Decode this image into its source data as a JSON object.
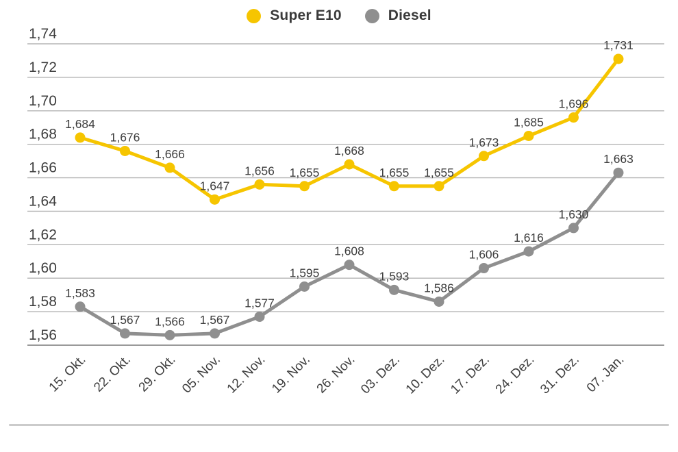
{
  "chart_data": {
    "type": "line",
    "title": "",
    "xlabel": "",
    "ylabel": "",
    "grid": true,
    "legend_position": "top-center",
    "decimal_separator": ",",
    "categories": [
      "15. Okt.",
      "22. Okt.",
      "29. Okt.",
      "05. Nov.",
      "12. Nov.",
      "19. Nov.",
      "26. Nov.",
      "03. Dez.",
      "10. Dez.",
      "17. Dez.",
      "24. Dez.",
      "31. Dez.",
      "07. Jan."
    ],
    "series": [
      {
        "name": "Super E10",
        "color": "#f6c500",
        "values": [
          1.684,
          1.676,
          1.666,
          1.647,
          1.656,
          1.655,
          1.668,
          1.655,
          1.655,
          1.673,
          1.685,
          1.696,
          1.731
        ],
        "labels": [
          "1,684",
          "1,676",
          "1,666",
          "1,647",
          "1,656",
          "1,655",
          "1,668",
          "1,655",
          "1,655",
          "1,673",
          "1,685",
          "1,696",
          "1,731"
        ]
      },
      {
        "name": "Diesel",
        "color": "#8f8f8f",
        "values": [
          1.583,
          1.567,
          1.566,
          1.567,
          1.577,
          1.595,
          1.608,
          1.593,
          1.586,
          1.606,
          1.616,
          1.63,
          1.663
        ],
        "labels": [
          "1,583",
          "1,567",
          "1,566",
          "1,567",
          "1,577",
          "1,595",
          "1,608",
          "1,593",
          "1,586",
          "1,606",
          "1,616",
          "1,630",
          "1,663"
        ]
      }
    ],
    "y_axis": {
      "min": 1.56,
      "max": 1.74,
      "step": 0.02,
      "tick_labels": [
        "1,74",
        "1,72",
        "1,70",
        "1,68",
        "1,66",
        "1,64",
        "1,62",
        "1,60",
        "1,58",
        "1,56"
      ]
    }
  },
  "style": {
    "text_color": "#3e3e3e",
    "grid_color": "#b5b5b5",
    "axis_line_color": "#9a9a9a",
    "separator_color": "#cbcbcb",
    "background_color": "#ffffff"
  }
}
